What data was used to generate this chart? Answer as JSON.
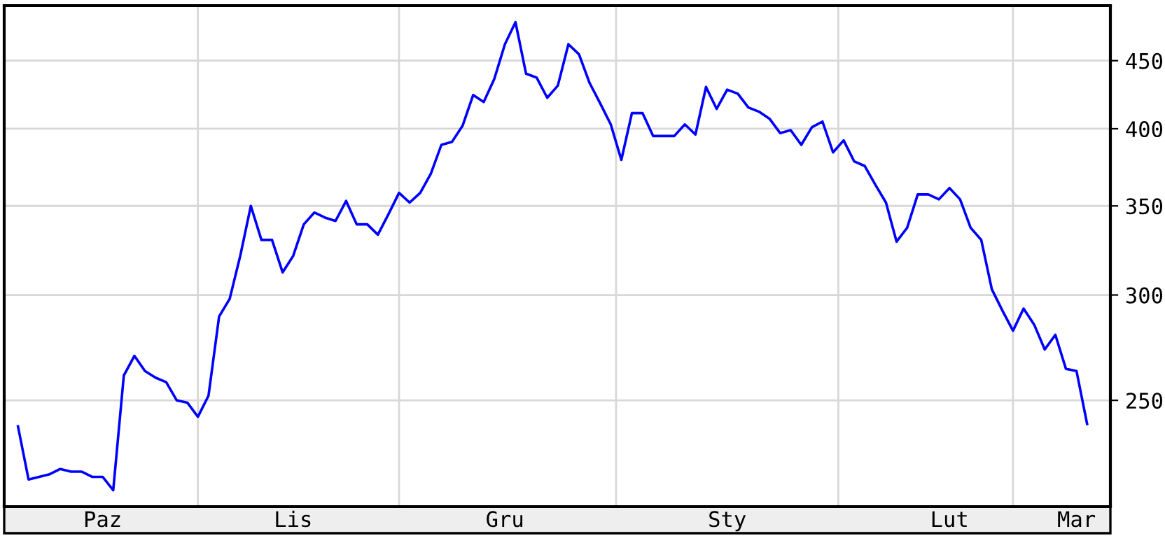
{
  "chart_data": {
    "type": "line",
    "color": "#0000ff",
    "log": "y",
    "grid": "y",
    "legend": false,
    "marker": "none",
    "line_style": "solid",
    "categories": [
      null,
      null,
      null,
      null,
      null,
      null,
      null,
      null,
      "Paz",
      null,
      null,
      null,
      null,
      null,
      null,
      null,
      null,
      null,
      null,
      null,
      null,
      null,
      null,
      null,
      null,
      null,
      "Lis",
      null,
      null,
      null,
      null,
      null,
      null,
      null,
      null,
      null,
      null,
      null,
      null,
      null,
      null,
      null,
      null,
      null,
      null,
      null,
      "Gru",
      null,
      null,
      null,
      null,
      null,
      null,
      null,
      null,
      null,
      null,
      null,
      null,
      null,
      null,
      null,
      null,
      null,
      null,
      null,
      null,
      "Sty",
      null,
      null,
      null,
      null,
      null,
      null,
      null,
      null,
      null,
      null,
      null,
      null,
      null,
      null,
      null,
      null,
      null,
      null,
      null,
      null,
      "Lut",
      null,
      null,
      null,
      null,
      null,
      null,
      null,
      null,
      null,
      null,
      null,
      "Mar",
      null
    ],
    "values": [
      239,
      218,
      219,
      220,
      222,
      221,
      221,
      219,
      219,
      214,
      261,
      270,
      263,
      260,
      258,
      250,
      249,
      243,
      252,
      289,
      298,
      321,
      350,
      330,
      330,
      312,
      321,
      339,
      346,
      343,
      341,
      353,
      339,
      339,
      333,
      345,
      358,
      352,
      358,
      370,
      389,
      391,
      402,
      424,
      419,
      436,
      463,
      481,
      440,
      437,
      422,
      431,
      463,
      455,
      433,
      418,
      403,
      379,
      411,
      411,
      395,
      395,
      395,
      403,
      396,
      430,
      414,
      428,
      425,
      415,
      412,
      407,
      397,
      399,
      389,
      401,
      405,
      384,
      392,
      378,
      375,
      363,
      352,
      329,
      337,
      357,
      357,
      354,
      361,
      354,
      337,
      330,
      303,
      292,
      282,
      293,
      285,
      273,
      280,
      264,
      263,
      240
    ],
    "ylim": [
      208,
      495
    ],
    "yticks": [
      250,
      300,
      350,
      400,
      450
    ]
  }
}
